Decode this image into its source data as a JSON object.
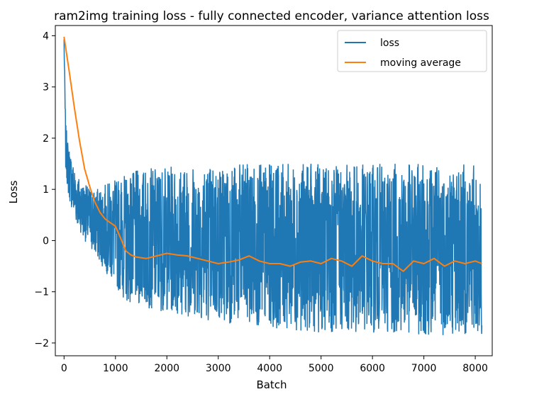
{
  "chart_data": {
    "type": "line",
    "title": "ram2img training loss - fully connected encoder, variance attention loss",
    "xlabel": "Batch",
    "ylabel": "Loss",
    "xlim": [
      -170,
      8330
    ],
    "ylim": [
      -2.25,
      4.2
    ],
    "xticks": [
      0,
      1000,
      2000,
      3000,
      4000,
      5000,
      6000,
      7000,
      8000
    ],
    "yticks": [
      -2,
      -1,
      0,
      1,
      2,
      3,
      4
    ],
    "x_tick_labels": [
      "0",
      "1000",
      "2000",
      "3000",
      "4000",
      "5000",
      "6000",
      "7000",
      "8000"
    ],
    "y_tick_labels": [
      "−2",
      "−1",
      "0",
      "1",
      "2",
      "3",
      "4"
    ],
    "grid": false,
    "legend_position": "top-right",
    "series": [
      {
        "name": "loss",
        "color": "#1f77b4",
        "description_x_range": [
          0,
          8130
        ],
        "envelope": {
          "x": [
            0,
            30,
            80,
            150,
            250,
            400,
            600,
            800,
            1000,
            1200,
            1500,
            2000,
            3000,
            4000,
            5000,
            6000,
            7000,
            8000,
            8130
          ],
          "upper": [
            4.0,
            2.3,
            1.9,
            1.6,
            1.3,
            1.1,
            1.0,
            1.1,
            1.2,
            1.3,
            1.4,
            1.45,
            1.5,
            1.5,
            1.5,
            1.5,
            1.5,
            1.5,
            1.0
          ],
          "lower": [
            3.8,
            1.4,
            0.9,
            0.6,
            0.3,
            0.0,
            -0.3,
            -0.6,
            -0.9,
            -1.2,
            -1.3,
            -1.4,
            -1.6,
            -1.7,
            -1.8,
            -1.8,
            -1.85,
            -1.85,
            -1.9
          ]
        }
      },
      {
        "name": "moving average",
        "color": "#ff7f0e",
        "x": [
          0,
          100,
          200,
          300,
          400,
          500,
          600,
          700,
          800,
          900,
          1000,
          1100,
          1200,
          1300,
          1400,
          1600,
          1800,
          2000,
          2200,
          2400,
          2600,
          2800,
          3000,
          3200,
          3400,
          3600,
          3800,
          4000,
          4200,
          4400,
          4600,
          4800,
          5000,
          5200,
          5400,
          5600,
          5800,
          6000,
          6200,
          6400,
          6600,
          6800,
          7000,
          7200,
          7400,
          7600,
          7800,
          8000,
          8130
        ],
        "y": [
          3.98,
          3.3,
          2.6,
          1.95,
          1.4,
          1.05,
          0.75,
          0.55,
          0.42,
          0.35,
          0.28,
          0.05,
          -0.2,
          -0.28,
          -0.32,
          -0.35,
          -0.3,
          -0.25,
          -0.28,
          -0.3,
          -0.35,
          -0.4,
          -0.45,
          -0.42,
          -0.38,
          -0.3,
          -0.4,
          -0.45,
          -0.45,
          -0.5,
          -0.42,
          -0.4,
          -0.45,
          -0.35,
          -0.4,
          -0.5,
          -0.3,
          -0.4,
          -0.45,
          -0.45,
          -0.6,
          -0.4,
          -0.45,
          -0.35,
          -0.5,
          -0.4,
          -0.45,
          -0.4,
          -0.45
        ]
      }
    ]
  }
}
